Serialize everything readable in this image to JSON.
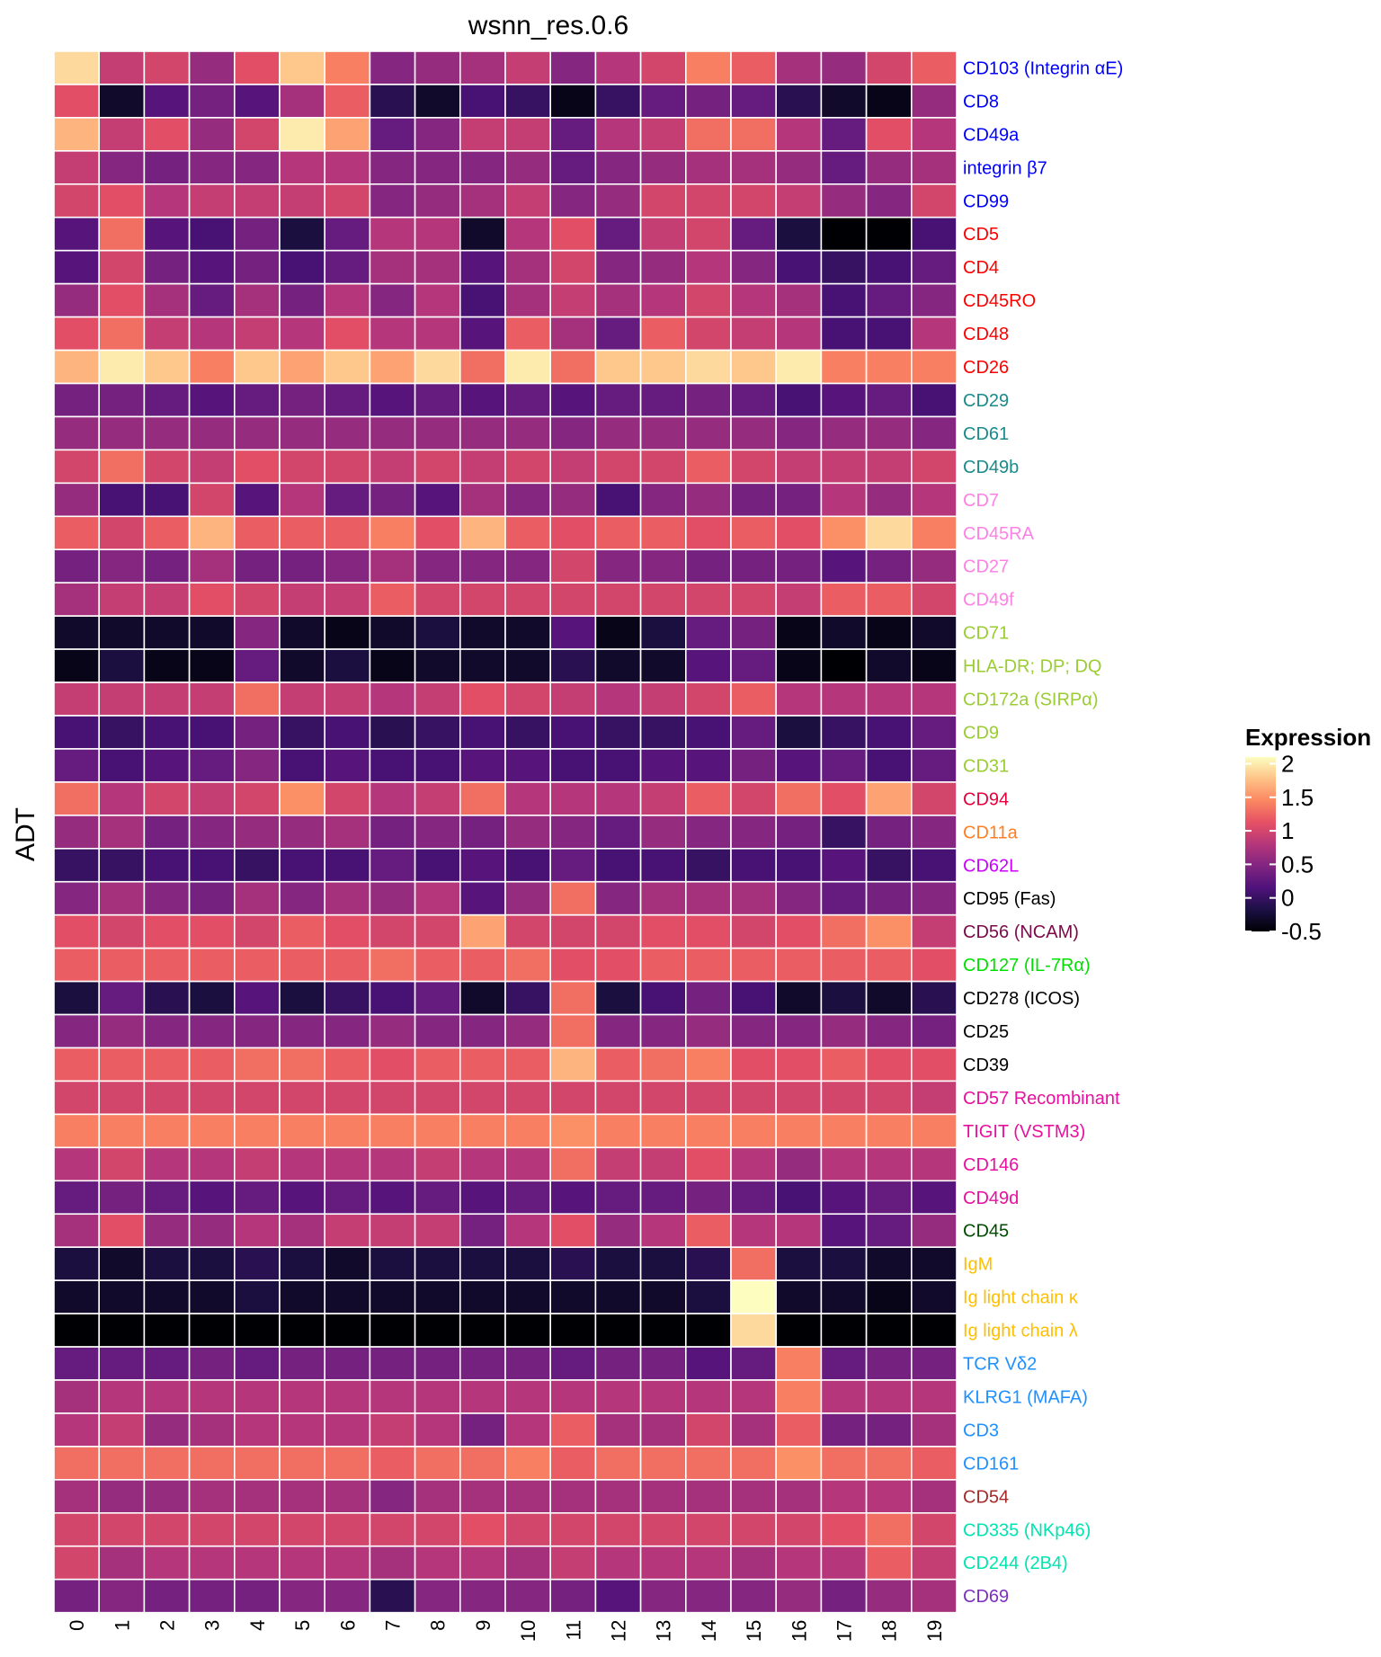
{
  "chart_data": {
    "type": "heatmap",
    "title": "wsnn_res.0.6",
    "xlabel": "",
    "ylabel": "ADT",
    "x": [
      "0",
      "1",
      "2",
      "3",
      "4",
      "5",
      "6",
      "7",
      "8",
      "9",
      "10",
      "11",
      "12",
      "13",
      "14",
      "15",
      "16",
      "17",
      "18",
      "19"
    ],
    "y": [
      {
        "label": "CD103 (Integrin αE)",
        "color": "#0000FF"
      },
      {
        "label": "CD8",
        "color": "#0000FF"
      },
      {
        "label": "CD49a",
        "color": "#0000FF"
      },
      {
        "label": "integrin β7",
        "color": "#0000FF"
      },
      {
        "label": "CD99",
        "color": "#0000FF"
      },
      {
        "label": "CD5",
        "color": "#FF0000"
      },
      {
        "label": "CD4",
        "color": "#FF0000"
      },
      {
        "label": "CD45RO",
        "color": "#FF0000"
      },
      {
        "label": "CD48",
        "color": "#FF0000"
      },
      {
        "label": "CD26",
        "color": "#FF0000"
      },
      {
        "label": "CD29",
        "color": "#1A8A8A"
      },
      {
        "label": "CD61",
        "color": "#1A8A8A"
      },
      {
        "label": "CD49b",
        "color": "#1A8A8A"
      },
      {
        "label": "CD7",
        "color": "#FF80E6"
      },
      {
        "label": "CD45RA",
        "color": "#FF80E6"
      },
      {
        "label": "CD27",
        "color": "#FF80E6"
      },
      {
        "label": "CD49f",
        "color": "#FF80E6"
      },
      {
        "label": "CD71",
        "color": "#9ACD32"
      },
      {
        "label": "HLA-DR; DP; DQ",
        "color": "#9ACD32"
      },
      {
        "label": "CD172a (SIRPα)",
        "color": "#9ACD32"
      },
      {
        "label": "CD9",
        "color": "#9ACD32"
      },
      {
        "label": "CD31",
        "color": "#9ACD32"
      },
      {
        "label": "CD94",
        "color": "#E8003C"
      },
      {
        "label": "CD11a",
        "color": "#FF7F24"
      },
      {
        "label": "CD62L",
        "color": "#CC00FF"
      },
      {
        "label": "CD95 (Fas)",
        "color": "#000000"
      },
      {
        "label": "CD56 (NCAM)",
        "color": "#7A0A4A"
      },
      {
        "label": "CD127 (IL-7Rα)",
        "color": "#00E000"
      },
      {
        "label": "CD278 (ICOS)",
        "color": "#000000"
      },
      {
        "label": "CD25",
        "color": "#000000"
      },
      {
        "label": "CD39",
        "color": "#000000"
      },
      {
        "label": "CD57 Recombinant",
        "color": "#E8119F"
      },
      {
        "label": "TIGIT (VSTM3)",
        "color": "#E8119F"
      },
      {
        "label": "CD146",
        "color": "#E8119F"
      },
      {
        "label": "CD49d",
        "color": "#E8119F"
      },
      {
        "label": "CD45",
        "color": "#004D00"
      },
      {
        "label": "IgM",
        "color": "#FFBF00"
      },
      {
        "label": "Ig light chain κ",
        "color": "#FFBF00"
      },
      {
        "label": "Ig light chain λ",
        "color": "#FFBF00"
      },
      {
        "label": "TCR Vδ2",
        "color": "#1E90FF"
      },
      {
        "label": "KLRG1 (MAFA)",
        "color": "#1E90FF"
      },
      {
        "label": "CD3",
        "color": "#1E90FF"
      },
      {
        "label": "CD161",
        "color": "#1E90FF"
      },
      {
        "label": "CD54",
        "color": "#A52A2A"
      },
      {
        "label": "CD335 (NKp46)",
        "color": "#00E5B0"
      },
      {
        "label": "CD244 (2B4)",
        "color": "#00E5B0"
      },
      {
        "label": "CD69",
        "color": "#7B2FBE"
      }
    ],
    "values": [
      [
        1.9,
        0.9,
        1.0,
        0.6,
        1.1,
        1.8,
        1.4,
        0.5,
        0.6,
        0.7,
        0.9,
        0.5,
        0.8,
        1.0,
        1.4,
        1.2,
        0.7,
        0.6,
        1.0,
        1.2
      ],
      [
        1.1,
        -0.3,
        0.2,
        0.4,
        0.2,
        0.7,
        1.2,
        -0.1,
        -0.3,
        0.1,
        0.0,
        -0.4,
        0.0,
        0.3,
        0.4,
        0.3,
        -0.1,
        -0.3,
        -0.4,
        0.6
      ],
      [
        1.7,
        0.9,
        1.1,
        0.6,
        1.0,
        2.0,
        1.6,
        0.3,
        0.5,
        0.9,
        0.9,
        0.3,
        0.8,
        0.9,
        1.3,
        1.3,
        0.8,
        0.3,
        1.1,
        0.8
      ],
      [
        0.9,
        0.5,
        0.4,
        0.5,
        0.5,
        0.8,
        0.8,
        0.5,
        0.5,
        0.5,
        0.6,
        0.3,
        0.5,
        0.6,
        0.7,
        0.7,
        0.6,
        0.3,
        0.6,
        0.7
      ],
      [
        1.0,
        1.1,
        0.8,
        0.9,
        0.9,
        0.9,
        1.0,
        0.5,
        0.6,
        0.7,
        0.9,
        0.5,
        0.6,
        1.0,
        1.0,
        1.0,
        0.9,
        0.6,
        0.5,
        1.0
      ],
      [
        0.2,
        1.3,
        0.2,
        0.1,
        0.4,
        -0.2,
        0.3,
        0.8,
        0.8,
        -0.3,
        0.8,
        1.1,
        0.3,
        0.9,
        1.0,
        0.3,
        -0.2,
        -0.6,
        -0.5,
        0.1
      ],
      [
        0.2,
        1.0,
        0.4,
        0.2,
        0.4,
        0.1,
        0.3,
        0.7,
        0.7,
        0.2,
        0.7,
        1.0,
        0.5,
        0.6,
        0.8,
        0.5,
        0.1,
        0.0,
        0.1,
        0.3
      ],
      [
        0.6,
        1.1,
        0.7,
        0.3,
        0.7,
        0.4,
        0.8,
        0.5,
        0.8,
        0.1,
        0.7,
        0.9,
        0.7,
        0.8,
        1.0,
        0.8,
        0.7,
        0.1,
        0.3,
        0.5
      ],
      [
        1.1,
        1.3,
        0.9,
        0.8,
        0.9,
        0.8,
        1.1,
        0.8,
        0.8,
        0.2,
        1.2,
        0.7,
        0.3,
        1.2,
        1.0,
        0.9,
        0.8,
        0.1,
        0.1,
        0.8
      ],
      [
        1.7,
        2.0,
        1.8,
        1.4,
        1.8,
        1.6,
        1.8,
        1.6,
        1.9,
        1.3,
        2.0,
        1.3,
        1.8,
        1.8,
        1.9,
        1.8,
        2.0,
        1.4,
        1.4,
        1.4
      ],
      [
        0.4,
        0.4,
        0.3,
        0.2,
        0.3,
        0.4,
        0.3,
        0.2,
        0.3,
        0.2,
        0.3,
        0.2,
        0.3,
        0.3,
        0.4,
        0.3,
        0.1,
        0.2,
        0.3,
        0.1
      ],
      [
        0.6,
        0.6,
        0.6,
        0.6,
        0.6,
        0.6,
        0.6,
        0.6,
        0.6,
        0.6,
        0.6,
        0.5,
        0.6,
        0.6,
        0.6,
        0.6,
        0.5,
        0.6,
        0.6,
        0.5
      ],
      [
        1.0,
        1.3,
        1.0,
        0.9,
        1.1,
        1.0,
        1.0,
        0.9,
        1.0,
        0.9,
        1.0,
        0.9,
        1.0,
        1.0,
        1.2,
        1.0,
        0.9,
        0.9,
        0.9,
        1.0
      ],
      [
        0.6,
        0.1,
        0.1,
        1.0,
        0.2,
        0.8,
        0.3,
        0.4,
        0.2,
        0.7,
        0.5,
        0.6,
        0.1,
        0.5,
        0.6,
        0.4,
        0.4,
        0.8,
        0.6,
        0.8
      ],
      [
        1.2,
        1.0,
        1.2,
        1.7,
        1.2,
        1.2,
        1.2,
        1.4,
        1.1,
        1.7,
        1.2,
        1.1,
        1.2,
        1.2,
        1.1,
        1.2,
        1.1,
        1.5,
        1.9,
        1.4
      ],
      [
        0.4,
        0.5,
        0.4,
        0.7,
        0.4,
        0.4,
        0.5,
        0.7,
        0.5,
        0.5,
        0.5,
        1.0,
        0.5,
        0.5,
        0.4,
        0.4,
        0.4,
        0.2,
        0.4,
        0.6
      ],
      [
        0.7,
        0.9,
        0.9,
        1.1,
        1.0,
        0.9,
        0.9,
        1.2,
        1.0,
        1.0,
        1.0,
        1.0,
        1.0,
        1.0,
        1.0,
        1.0,
        0.9,
        1.2,
        1.2,
        1.0
      ],
      [
        -0.3,
        -0.3,
        -0.3,
        -0.3,
        0.5,
        -0.3,
        -0.4,
        -0.3,
        -0.2,
        -0.3,
        -0.3,
        0.2,
        -0.4,
        -0.2,
        0.3,
        0.4,
        -0.4,
        -0.3,
        -0.4,
        -0.3
      ],
      [
        -0.4,
        -0.2,
        -0.4,
        -0.4,
        0.3,
        -0.3,
        -0.2,
        -0.4,
        -0.3,
        -0.3,
        -0.3,
        -0.1,
        -0.3,
        -0.3,
        0.2,
        0.3,
        -0.4,
        -0.5,
        -0.3,
        -0.4
      ],
      [
        0.9,
        0.9,
        0.9,
        0.9,
        1.3,
        0.9,
        0.9,
        0.8,
        0.9,
        1.1,
        1.0,
        0.9,
        0.8,
        0.9,
        1.0,
        1.2,
        0.8,
        0.8,
        0.8,
        0.8
      ],
      [
        0.1,
        0.0,
        0.1,
        0.1,
        0.4,
        0.0,
        0.1,
        -0.1,
        0.0,
        0.1,
        0.0,
        0.1,
        0.0,
        0.0,
        0.1,
        0.3,
        -0.2,
        0.0,
        0.1,
        0.3
      ],
      [
        0.3,
        0.1,
        0.2,
        0.3,
        0.5,
        0.1,
        0.2,
        0.1,
        0.1,
        0.2,
        0.2,
        0.1,
        0.1,
        0.2,
        0.2,
        0.4,
        0.2,
        0.3,
        0.1,
        0.3
      ],
      [
        1.3,
        0.8,
        1.0,
        0.9,
        1.0,
        1.5,
        1.0,
        0.8,
        0.9,
        1.3,
        0.8,
        0.8,
        0.8,
        0.9,
        1.2,
        1.0,
        1.3,
        1.1,
        1.6,
        1.0
      ],
      [
        0.6,
        0.7,
        0.4,
        0.5,
        0.6,
        0.6,
        0.7,
        0.4,
        0.5,
        0.4,
        0.6,
        0.5,
        0.3,
        0.6,
        0.5,
        0.5,
        0.4,
        0.0,
        0.4,
        0.5
      ],
      [
        0.0,
        0.0,
        0.1,
        0.1,
        0.0,
        0.1,
        0.1,
        0.3,
        0.1,
        0.2,
        0.1,
        0.3,
        0.1,
        0.1,
        0.0,
        0.1,
        0.1,
        0.2,
        0.0,
        0.1
      ],
      [
        0.5,
        0.7,
        0.5,
        0.4,
        0.7,
        0.5,
        0.7,
        0.6,
        0.8,
        0.2,
        0.6,
        1.3,
        0.5,
        0.7,
        0.7,
        0.7,
        0.5,
        0.3,
        0.4,
        0.5
      ],
      [
        1.1,
        1.0,
        1.1,
        1.1,
        1.0,
        1.2,
        1.1,
        1.0,
        1.0,
        1.6,
        1.0,
        1.0,
        1.0,
        1.1,
        1.1,
        1.0,
        1.1,
        1.3,
        1.5,
        0.9
      ],
      [
        1.2,
        1.2,
        1.2,
        1.2,
        1.2,
        1.2,
        1.2,
        1.3,
        1.2,
        1.2,
        1.3,
        1.1,
        1.1,
        1.2,
        1.2,
        1.2,
        1.2,
        1.2,
        1.2,
        1.1
      ],
      [
        -0.2,
        0.3,
        -0.1,
        -0.2,
        0.2,
        -0.2,
        0.0,
        0.1,
        0.3,
        -0.3,
        0.0,
        1.3,
        -0.2,
        0.1,
        0.4,
        0.1,
        -0.3,
        -0.2,
        -0.3,
        -0.1
      ],
      [
        0.5,
        0.6,
        0.5,
        0.5,
        0.5,
        0.5,
        0.5,
        0.6,
        0.5,
        0.5,
        0.6,
        1.3,
        0.5,
        0.5,
        0.6,
        0.5,
        0.5,
        0.6,
        0.5,
        0.4
      ],
      [
        1.2,
        1.2,
        1.2,
        1.2,
        1.3,
        1.3,
        1.2,
        1.1,
        1.2,
        1.2,
        1.2,
        1.7,
        1.2,
        1.3,
        1.4,
        1.1,
        1.1,
        1.2,
        1.1,
        1.1
      ],
      [
        1.0,
        1.0,
        1.0,
        1.0,
        1.0,
        1.0,
        1.0,
        1.0,
        1.0,
        1.0,
        1.0,
        1.0,
        1.0,
        1.0,
        1.0,
        1.0,
        1.0,
        1.0,
        1.0,
        0.9
      ],
      [
        1.4,
        1.4,
        1.4,
        1.4,
        1.4,
        1.4,
        1.4,
        1.4,
        1.4,
        1.4,
        1.4,
        1.5,
        1.4,
        1.4,
        1.4,
        1.4,
        1.4,
        1.4,
        1.4,
        1.4
      ],
      [
        0.8,
        1.0,
        0.8,
        0.8,
        0.9,
        0.8,
        0.8,
        0.8,
        0.9,
        0.8,
        0.8,
        1.3,
        0.9,
        0.9,
        1.1,
        0.8,
        0.6,
        0.8,
        0.8,
        0.8
      ],
      [
        0.3,
        0.4,
        0.3,
        0.2,
        0.3,
        0.2,
        0.3,
        0.2,
        0.3,
        0.2,
        0.3,
        0.2,
        0.3,
        0.3,
        0.4,
        0.3,
        0.1,
        0.2,
        0.3,
        0.2
      ],
      [
        0.7,
        1.1,
        0.6,
        0.6,
        0.8,
        0.7,
        0.9,
        0.9,
        0.9,
        0.4,
        0.8,
        1.1,
        0.6,
        0.8,
        1.2,
        0.8,
        0.8,
        0.2,
        0.3,
        0.6
      ],
      [
        -0.2,
        -0.3,
        -0.2,
        -0.2,
        -0.1,
        -0.2,
        -0.3,
        -0.2,
        -0.2,
        -0.2,
        -0.2,
        -0.1,
        -0.2,
        -0.2,
        -0.1,
        1.3,
        -0.2,
        -0.2,
        -0.3,
        -0.3
      ],
      [
        -0.3,
        -0.3,
        -0.3,
        -0.3,
        -0.2,
        -0.3,
        -0.3,
        -0.3,
        -0.3,
        -0.3,
        -0.3,
        -0.3,
        -0.3,
        -0.3,
        -0.2,
        2.1,
        -0.3,
        -0.3,
        -0.4,
        -0.3
      ],
      [
        -0.5,
        -0.5,
        -0.5,
        -0.5,
        -0.5,
        -0.5,
        -0.5,
        -0.5,
        -0.5,
        -0.5,
        -0.5,
        -0.5,
        -0.5,
        -0.5,
        -0.5,
        1.9,
        -0.5,
        -0.5,
        -0.5,
        -0.5
      ],
      [
        0.3,
        0.3,
        0.3,
        0.4,
        0.3,
        0.4,
        0.4,
        0.4,
        0.4,
        0.4,
        0.4,
        0.3,
        0.4,
        0.4,
        0.2,
        0.3,
        1.4,
        0.3,
        0.4,
        0.4
      ],
      [
        0.7,
        0.8,
        0.8,
        0.8,
        0.8,
        0.8,
        0.8,
        0.8,
        0.8,
        0.8,
        0.8,
        0.8,
        0.8,
        0.8,
        0.8,
        0.8,
        1.4,
        0.8,
        0.8,
        0.8
      ],
      [
        0.8,
        0.9,
        0.6,
        0.7,
        0.8,
        0.8,
        0.8,
        0.9,
        0.8,
        0.4,
        0.8,
        1.2,
        0.7,
        0.7,
        1.0,
        0.7,
        1.2,
        0.4,
        0.4,
        0.7
      ],
      [
        1.3,
        1.3,
        1.3,
        1.3,
        1.3,
        1.3,
        1.3,
        1.2,
        1.3,
        1.3,
        1.4,
        1.2,
        1.3,
        1.3,
        1.3,
        1.3,
        1.5,
        1.3,
        1.3,
        1.2
      ],
      [
        0.7,
        0.6,
        0.6,
        0.7,
        0.7,
        0.7,
        0.7,
        0.5,
        0.7,
        0.7,
        0.7,
        0.7,
        0.7,
        0.7,
        0.7,
        0.7,
        0.7,
        0.8,
        0.8,
        0.7
      ],
      [
        1.0,
        1.0,
        1.0,
        1.0,
        1.0,
        1.0,
        1.0,
        1.0,
        1.0,
        1.1,
        1.0,
        1.0,
        1.0,
        1.0,
        1.0,
        1.0,
        1.0,
        1.1,
        1.3,
        1.0
      ],
      [
        1.0,
        0.7,
        0.8,
        0.8,
        0.8,
        0.8,
        0.8,
        0.7,
        0.8,
        0.8,
        0.7,
        0.9,
        0.8,
        0.8,
        0.8,
        0.7,
        0.8,
        0.8,
        1.2,
        0.9
      ],
      [
        0.4,
        0.5,
        0.4,
        0.4,
        0.4,
        0.5,
        0.5,
        -0.1,
        0.5,
        0.5,
        0.5,
        0.4,
        0.2,
        0.5,
        0.5,
        0.5,
        0.6,
        0.4,
        0.6,
        0.7
      ]
    ],
    "colorbar": {
      "title": "Expression",
      "min": -0.5,
      "max": 2.1,
      "ticks": [
        -0.5,
        0,
        0.5,
        1,
        1.5,
        2
      ],
      "tick_labels": [
        "-0.5",
        "0",
        "0.5",
        "1",
        "1.5",
        "2"
      ],
      "colormap": "magma",
      "stops": [
        "#000004",
        "#1c1044",
        "#4f127b",
        "#812581",
        "#b5367a",
        "#e55064",
        "#fb8761",
        "#fec287",
        "#fcfdbf"
      ]
    },
    "legend_position": "right"
  }
}
